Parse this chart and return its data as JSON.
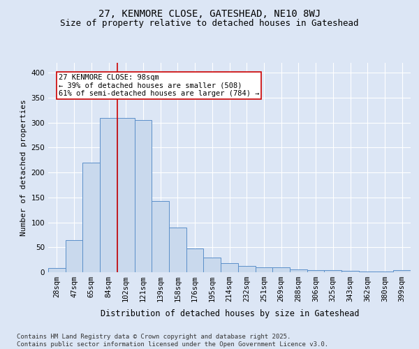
{
  "title": "27, KENMORE CLOSE, GATESHEAD, NE10 8WJ",
  "subtitle": "Size of property relative to detached houses in Gateshead",
  "xlabel": "Distribution of detached houses by size in Gateshead",
  "ylabel": "Number of detached properties",
  "categories": [
    "28sqm",
    "47sqm",
    "65sqm",
    "84sqm",
    "102sqm",
    "121sqm",
    "139sqm",
    "158sqm",
    "176sqm",
    "195sqm",
    "214sqm",
    "232sqm",
    "251sqm",
    "269sqm",
    "288sqm",
    "306sqm",
    "325sqm",
    "343sqm",
    "362sqm",
    "380sqm",
    "399sqm"
  ],
  "values": [
    8,
    65,
    220,
    310,
    310,
    305,
    143,
    90,
    48,
    30,
    18,
    13,
    10,
    10,
    5,
    4,
    4,
    3,
    2,
    2,
    4
  ],
  "bar_color": "#c9d9ed",
  "bar_edge_color": "#5b8fc9",
  "bar_linewidth": 0.7,
  "vline_color": "#cc0000",
  "vline_linewidth": 1.2,
  "annotation_text": "27 KENMORE CLOSE: 98sqm\n← 39% of detached houses are smaller (508)\n61% of semi-detached houses are larger (784) →",
  "annotation_box_color": "#ffffff",
  "annotation_box_edge": "#cc0000",
  "ylim": [
    0,
    420
  ],
  "yticks": [
    0,
    50,
    100,
    150,
    200,
    250,
    300,
    350,
    400
  ],
  "background_color": "#dce6f5",
  "plot_bg_color": "#dce6f5",
  "grid_color": "#ffffff",
  "footer_text": "Contains HM Land Registry data © Crown copyright and database right 2025.\nContains public sector information licensed under the Open Government Licence v3.0.",
  "title_fontsize": 10,
  "subtitle_fontsize": 9,
  "xlabel_fontsize": 8.5,
  "ylabel_fontsize": 8,
  "tick_fontsize": 7.5,
  "annotation_fontsize": 7.5,
  "footer_fontsize": 6.5
}
